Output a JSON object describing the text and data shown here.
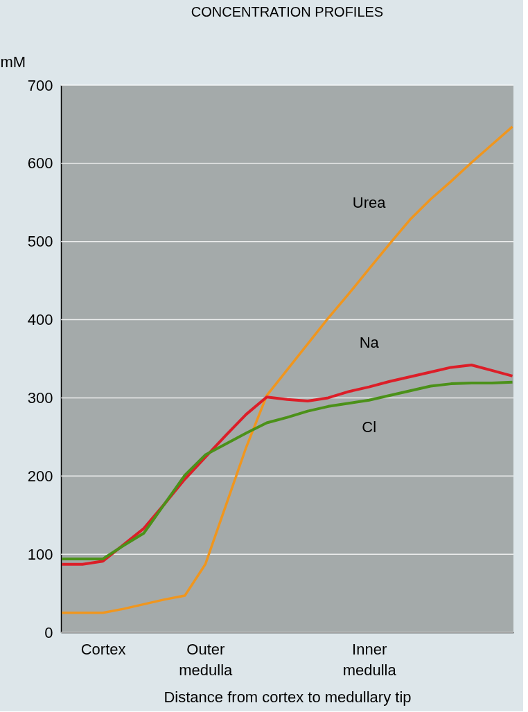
{
  "chart_data": {
    "type": "line",
    "title": "CONCENTRATION PROFILES",
    "ylabel": "mM",
    "xlabel": "Distance from cortex to medullary tip",
    "categories": [
      null,
      null,
      "Cortex",
      null,
      null,
      null,
      null,
      "Outer medulla",
      null,
      null,
      null,
      null,
      null,
      null,
      null,
      "Inner medulla",
      null,
      null,
      null,
      null,
      null,
      null,
      null
    ],
    "ylim": [
      0,
      700
    ],
    "yticks": [
      0,
      100,
      200,
      300,
      400,
      500,
      600,
      700
    ],
    "grid": "y",
    "line_style": "solid",
    "series": [
      {
        "name": "Urea",
        "color": "#f0961e",
        "values": [
          25,
          25,
          25,
          30,
          36,
          42,
          47,
          87,
          162,
          237,
          303,
          336,
          369,
          402,
          433,
          465,
          497,
          528,
          554,
          577,
          601,
          624,
          647
        ]
      },
      {
        "name": "Na",
        "color": "#dc1e28",
        "values": [
          87,
          87,
          91,
          112,
          133,
          164,
          196,
          224,
          252,
          279,
          301,
          298,
          296,
          300,
          308,
          314,
          321,
          327,
          333,
          339,
          342,
          335,
          328
        ]
      },
      {
        "name": "Cl",
        "color": "#4b9119",
        "values": [
          94,
          94,
          94,
          111,
          127,
          164,
          201,
          227,
          241,
          255,
          268,
          275,
          283,
          289,
          293,
          297,
          303,
          309,
          315,
          318,
          319,
          319,
          320
        ]
      }
    ]
  }
}
